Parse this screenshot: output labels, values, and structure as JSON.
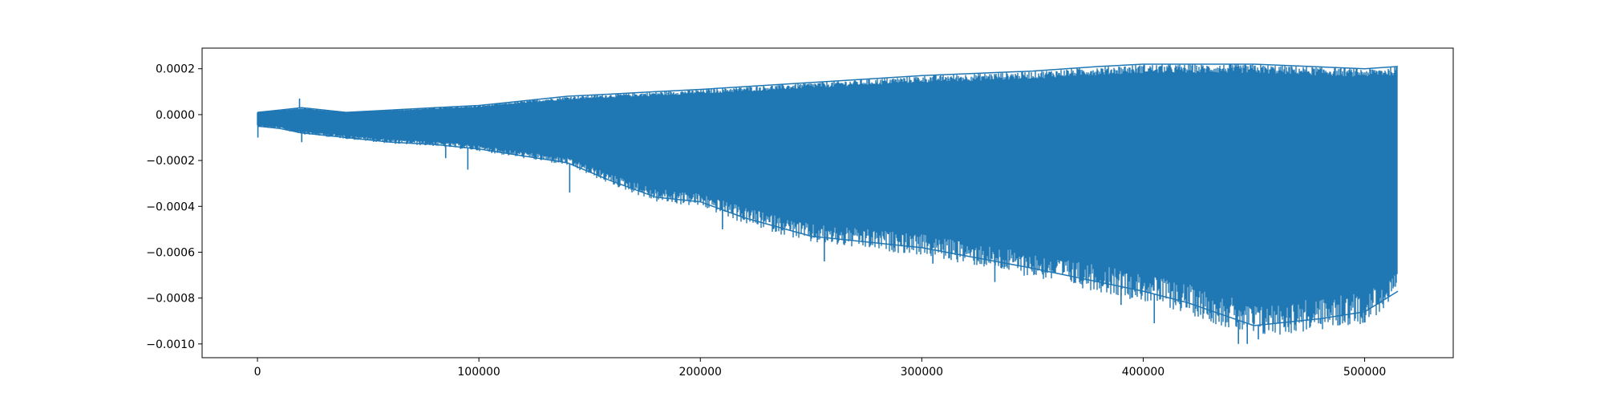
{
  "chart_data": {
    "type": "line",
    "title": "",
    "xlabel": "",
    "ylabel": "",
    "xlim": [
      -25000,
      540000
    ],
    "ylim": [
      -0.00106,
      0.00029
    ],
    "x_ticks": [
      0,
      100000,
      200000,
      300000,
      400000,
      500000
    ],
    "x_tick_labels": [
      "0",
      "100000",
      "200000",
      "300000",
      "400000",
      "500000"
    ],
    "y_ticks": [
      0.0002,
      0.0,
      -0.0002,
      -0.0004,
      -0.0006,
      -0.0008,
      -0.001
    ],
    "y_tick_labels": [
      "0.0002",
      "0.0000",
      "−0.0002",
      "−0.0004",
      "−0.0006",
      "−0.0008",
      "−0.0010"
    ],
    "grid": false,
    "legend": "none",
    "series": [
      {
        "color": "#1f77b4",
        "x_start": 0,
        "x_end": 515000,
        "upper_envelope": {
          "x": [
            0,
            10000,
            20000,
            40000,
            60000,
            80000,
            100000,
            120000,
            140000,
            160000,
            180000,
            200000,
            250000,
            300000,
            350000,
            380000,
            400000,
            450000,
            500000,
            515000
          ],
          "y": [
            1e-05,
            2e-05,
            3e-05,
            1e-05,
            2e-05,
            3e-05,
            4e-05,
            6e-05,
            8e-05,
            9e-05,
            0.0001,
            0.00011,
            0.00014,
            0.00017,
            0.00019,
            0.00021,
            0.00022,
            0.00022,
            0.0002,
            0.00021
          ]
        },
        "lower_envelope": {
          "x": [
            0,
            10000,
            20000,
            40000,
            60000,
            80000,
            100000,
            120000,
            140000,
            160000,
            180000,
            200000,
            220000,
            250000,
            300000,
            350000,
            400000,
            420000,
            450000,
            480000,
            500000,
            515000
          ],
          "y": [
            -5e-05,
            -6e-05,
            -8e-05,
            -0.0001,
            -0.00012,
            -0.00013,
            -0.00015,
            -0.00018,
            -0.00021,
            -0.00029,
            -0.00036,
            -0.00038,
            -0.00045,
            -0.00053,
            -0.00058,
            -0.00067,
            -0.00077,
            -0.00082,
            -0.00092,
            -0.00089,
            -0.00086,
            -0.00077
          ]
        },
        "spikes": [
          {
            "x": 200,
            "y": -0.0001
          },
          {
            "x": 19000,
            "y": 7e-05
          },
          {
            "x": 20000,
            "y": -0.00012
          },
          {
            "x": 85000,
            "y": -0.00019
          },
          {
            "x": 95000,
            "y": -0.00024
          },
          {
            "x": 141000,
            "y": -0.00034
          },
          {
            "x": 210000,
            "y": -0.0005
          },
          {
            "x": 256000,
            "y": -0.00064
          },
          {
            "x": 305000,
            "y": -0.00065
          },
          {
            "x": 333000,
            "y": -0.00073
          },
          {
            "x": 390000,
            "y": -0.00083
          },
          {
            "x": 405000,
            "y": -0.00091
          },
          {
            "x": 443000,
            "y": -0.001
          },
          {
            "x": 447000,
            "y": -0.001
          },
          {
            "x": 452000,
            "y": -0.00098
          },
          {
            "x": 480000,
            "y": -0.00091
          }
        ]
      }
    ]
  }
}
